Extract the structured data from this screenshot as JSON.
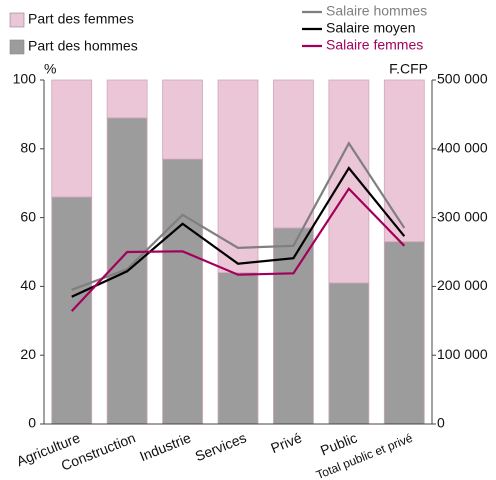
{
  "chart_data": {
    "type": "bar",
    "categories": [
      "Agriculture",
      "Construction",
      "Industrie",
      "Services",
      "Privé",
      "Public",
      "Total public et privé"
    ],
    "y_label": "%",
    "y2_label": "F.CFP",
    "ylim": [
      0,
      100
    ],
    "yticks": [
      0,
      20,
      40,
      60,
      80,
      100
    ],
    "y2lim": [
      0,
      500000
    ],
    "y2ticks": [
      {
        "value": 0,
        "label": "0"
      },
      {
        "value": 100000,
        "label": "100 000"
      },
      {
        "value": 200000,
        "label": "200 000"
      },
      {
        "value": 300000,
        "label": "300 000"
      },
      {
        "value": 400000,
        "label": "400 000"
      },
      {
        "value": 500000,
        "label": "500 000"
      }
    ],
    "series": [
      {
        "name": "Part des hommes",
        "color": "#9c9c9c",
        "kind": "stack",
        "values": [
          66,
          89,
          77,
          44,
          57,
          41,
          53
        ]
      },
      {
        "name": "Part des femmes",
        "color": "#ebc6d6",
        "kind": "stack",
        "values": [
          34,
          11,
          23,
          56,
          43,
          59,
          47
        ]
      },
      {
        "name": "Salaire hommes",
        "color": "#7f7f7f",
        "kind": "line",
        "axis": "y2",
        "values": [
          195000,
          225000,
          304000,
          256000,
          259000,
          408000,
          285000
        ]
      },
      {
        "name": "Salaire moyen",
        "color": "#000000",
        "kind": "line",
        "axis": "y2",
        "values": [
          185000,
          222000,
          291000,
          233000,
          241000,
          372000,
          273000
        ]
      },
      {
        "name": "Salaire femmes",
        "color": "#a3005c",
        "kind": "line",
        "axis": "y2",
        "values": [
          164000,
          250000,
          251000,
          217000,
          219000,
          342000,
          259000
        ]
      }
    ]
  }
}
